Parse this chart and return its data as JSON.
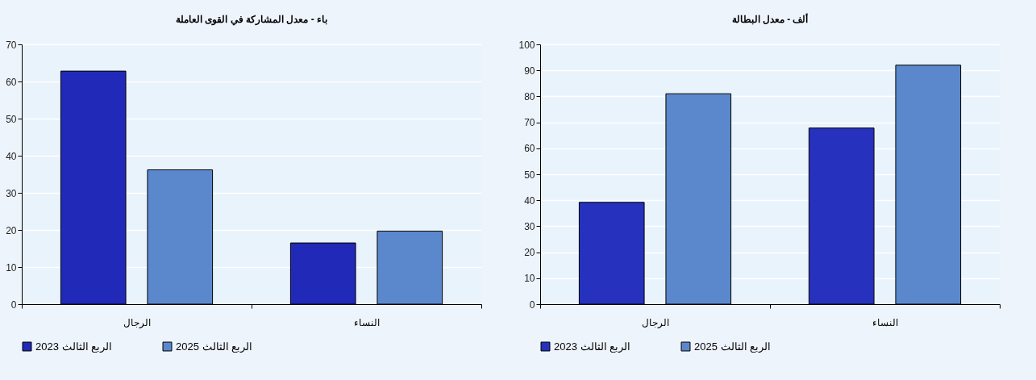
{
  "chart_data": [
    {
      "type": "bar",
      "title": "باء -  معدل المشاركة في القوى العاملة",
      "categories": [
        "الرجال",
        "النساء"
      ],
      "series": [
        {
          "name": "الربع الثالث 2023",
          "color": "#2129b8",
          "values": [
            62.8,
            16.5
          ]
        },
        {
          "name": "الربع الثالث 2025",
          "color": "#5b88cc",
          "values": [
            36.2,
            19.7
          ]
        }
      ],
      "ylim": [
        0,
        70
      ],
      "yticks": [
        0,
        10,
        20,
        30,
        40,
        50,
        60,
        70
      ],
      "grid": "y",
      "legend": "bottom"
    },
    {
      "type": "bar",
      "title": "ألف -  معدل البطالة",
      "categories": [
        "الرجال",
        "النساء"
      ],
      "series": [
        {
          "name": "الربع الثالث 2023",
          "color": "#2632bd",
          "values": [
            39.2,
            67.8
          ]
        },
        {
          "name": "الربع الثالث 2025",
          "color": "#5b88cc",
          "values": [
            81.0,
            92.0
          ]
        }
      ],
      "ylim": [
        0,
        100
      ],
      "yticks": [
        0,
        10,
        20,
        30,
        40,
        50,
        60,
        70,
        80,
        90,
        100
      ],
      "grid": "y",
      "legend": "bottom"
    }
  ]
}
